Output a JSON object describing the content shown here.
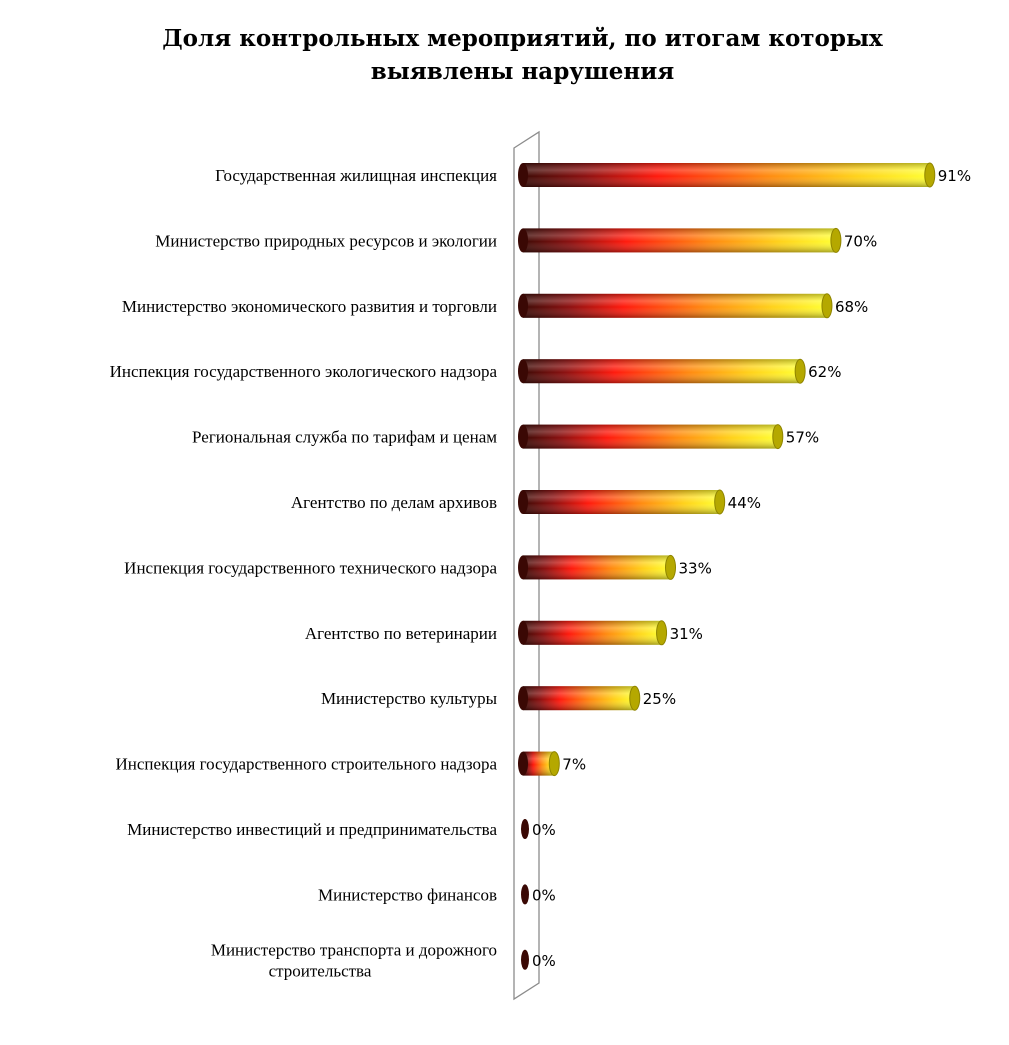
{
  "title_lines": [
    "Доля контрольных мероприятий, по итогам которых",
    "выявлены нарушения"
  ],
  "chart_data": {
    "type": "bar",
    "orientation": "horizontal",
    "style": "3d-cylinder",
    "title": "Доля контрольных мероприятий, по итогам которых выявлены нарушения",
    "categories": [
      [
        "Государственная жилищная инспекция"
      ],
      [
        "Министерство природных ресурсов и экологии"
      ],
      [
        "Министерство экономического развития и торговли"
      ],
      [
        "Инспекция государственного экологического надзора"
      ],
      [
        "Региональная служба по тарифам и ценам"
      ],
      [
        "Агентство по делам архивов"
      ],
      [
        "Инспекция государственного технического надзора"
      ],
      [
        "Агентство по ветеринарии"
      ],
      [
        "Министерство культуры"
      ],
      [
        "Инспекция государственного строительного надзора"
      ],
      [
        "Министерство инвестиций и предпринимательства"
      ],
      [
        "Министерство финансов"
      ],
      [
        "Министерство транспорта и дорожного",
        "строительства"
      ]
    ],
    "values": [
      91,
      70,
      68,
      62,
      57,
      44,
      33,
      31,
      25,
      7,
      0,
      0,
      0
    ],
    "value_labels": [
      "91%",
      "70%",
      "68%",
      "62%",
      "57%",
      "44%",
      "33%",
      "31%",
      "25%",
      "7%",
      "0%",
      "0%",
      "0%"
    ],
    "xlim": [
      0,
      100
    ],
    "unit": "%",
    "gradient_colors": [
      "#3d0a05",
      "#8b1010",
      "#ff1a0d",
      "#ff8a10",
      "#ffd21a",
      "#ffff33"
    ],
    "cap_color": "#b5a800",
    "grid": false,
    "legend": "none"
  }
}
